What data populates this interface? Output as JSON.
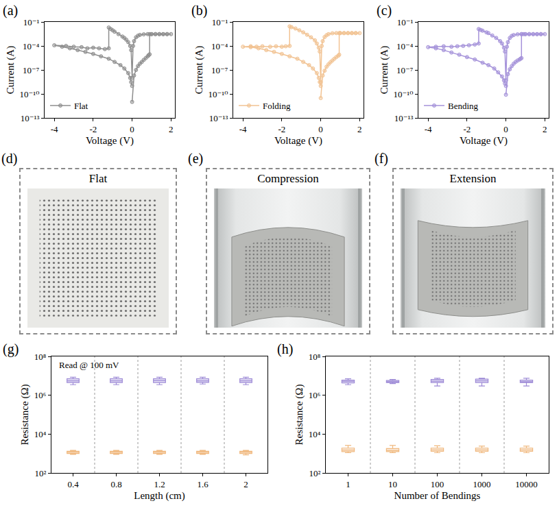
{
  "chart_data": [
    {
      "type": "line",
      "label": "(a)",
      "xlabel": "Voltage (V)",
      "ylabel": "Current (A)",
      "log": "y",
      "grid": false,
      "legend": "lower left",
      "xlim": [
        -4.5,
        2.2
      ],
      "xticks": [
        -4,
        -2,
        0,
        2
      ],
      "ylim": [
        1e-13,
        0.1
      ],
      "yticks": [
        {
          "value": 1e-13,
          "label": "10⁻¹³"
        },
        {
          "value": 1e-10,
          "label": "10⁻¹⁰"
        },
        {
          "value": 1e-07,
          "label": "10⁻⁷"
        },
        {
          "value": 0.0001,
          "label": "10⁻⁴"
        },
        {
          "value": 0.1,
          "label": "10⁻¹"
        }
      ],
      "series": [
        {
          "name": "Flat",
          "color": "#8e8e8e",
          "marker": "circle",
          "x": [
            0,
            0.1,
            0.2,
            0.3,
            0.4,
            0.5,
            0.6,
            0.7,
            0.8,
            0.85,
            0.9,
            0.9,
            1.0,
            1.2,
            1.4,
            1.6,
            1.8,
            2.0,
            1.8,
            1.6,
            1.4,
            1.2,
            1.0,
            0.8,
            0.6,
            0.4,
            0.3,
            0.2,
            0.1,
            0.05,
            0,
            -0.05,
            -0.1,
            -0.2,
            -0.3,
            -0.4,
            -0.5,
            -0.7,
            -0.9,
            -1.0,
            -1.1,
            -1.2,
            -1.2,
            -1.4,
            -1.7,
            -2.0,
            -2.3,
            -2.6,
            -3.0,
            -3.4,
            -4.0,
            -3.6,
            -3.2,
            -2.8,
            -2.4,
            -2.0,
            -1.6,
            -1.2,
            -0.9,
            -0.6,
            -0.4,
            -0.2,
            -0.1,
            -0.05,
            0
          ],
          "values": [
            1e-11,
            2e-08,
            1e-07,
            3e-07,
            6e-07,
            1e-06,
            1.8e-06,
            3e-06,
            5e-06,
            7e-06,
            9e-06,
            0.003,
            0.003,
            0.003,
            0.003,
            0.003,
            0.003,
            0.003,
            0.003,
            0.003,
            0.003,
            0.003,
            0.003,
            0.003,
            0.0028,
            0.0024,
            0.0019,
            0.0012,
            0.0004,
            0.0001,
            1e-08,
            3e-05,
            0.0001,
            0.0003,
            0.0006,
            0.001,
            0.0015,
            0.003,
            0.006,
            0.009,
            0.013,
            0.02,
            5e-05,
            4e-05,
            5e-05,
            6e-05,
            5e-05,
            7e-05,
            8e-05,
            0.0001,
            0.00012,
            8e-05,
            5e-05,
            3e-05,
            1.8e-05,
            1e-05,
            5e-06,
            2.5e-06,
            1e-06,
            4e-07,
            1.5e-07,
            4e-08,
            1e-08,
            3e-09,
            1e-09
          ]
        }
      ]
    },
    {
      "type": "line",
      "label": "(b)",
      "xlabel": "Voltage (V)",
      "ylabel": "Current (A)",
      "log": "y",
      "grid": false,
      "legend": "lower left",
      "xlim": [
        -4.5,
        2.2
      ],
      "xticks": [
        -4,
        -2,
        0,
        2
      ],
      "ylim": [
        1e-13,
        0.1
      ],
      "yticks": [
        {
          "value": 1e-13,
          "label": "10⁻¹³"
        },
        {
          "value": 1e-10,
          "label": "10⁻¹⁰"
        },
        {
          "value": 1e-07,
          "label": "10⁻⁷"
        },
        {
          "value": 0.0001,
          "label": "10⁻⁴"
        },
        {
          "value": 0.1,
          "label": "10⁻¹"
        }
      ],
      "series": [
        {
          "name": "Folding",
          "color": "#f2c393",
          "marker": "circle",
          "x": [
            0,
            0.1,
            0.2,
            0.3,
            0.4,
            0.5,
            0.6,
            0.7,
            0.8,
            0.9,
            0.95,
            0.95,
            1.0,
            1.2,
            1.4,
            1.6,
            1.8,
            2.0,
            1.8,
            1.6,
            1.4,
            1.2,
            1.0,
            0.8,
            0.6,
            0.4,
            0.3,
            0.2,
            0.1,
            0.05,
            0,
            -0.05,
            -0.1,
            -0.2,
            -0.3,
            -0.5,
            -0.7,
            -0.9,
            -1.1,
            -1.3,
            -1.5,
            -1.6,
            -1.6,
            -1.8,
            -2.0,
            -2.3,
            -2.6,
            -3.0,
            -3.3,
            -3.6,
            -4.0,
            -3.6,
            -3.2,
            -2.8,
            -2.4,
            -2.0,
            -1.6,
            -1.2,
            -0.9,
            -0.6,
            -0.4,
            -0.2,
            -0.1,
            -0.05,
            0
          ],
          "values": [
            3e-11,
            2e-08,
            8e-08,
            2.5e-07,
            5e-07,
            9e-07,
            1.5e-06,
            2.5e-06,
            4e-06,
            6e-06,
            8e-06,
            0.004,
            0.004,
            0.004,
            0.004,
            0.004,
            0.004,
            0.004,
            0.004,
            0.004,
            0.004,
            0.004,
            0.004,
            0.004,
            0.0038,
            0.003,
            0.0022,
            0.0013,
            0.0004,
            0.0001,
            3e-09,
            2e-05,
            6e-05,
            0.0002,
            0.0005,
            0.0012,
            0.0025,
            0.005,
            0.009,
            0.015,
            0.022,
            0.028,
            0.0001,
            9e-05,
            8e-05,
            9e-05,
            8e-05,
            9e-05,
            8e-05,
            9e-05,
            8e-05,
            7e-05,
            5e-05,
            3e-05,
            1.8e-05,
            1e-05,
            5e-06,
            2.5e-06,
            1e-06,
            4e-07,
            1.5e-07,
            4e-08,
            1e-08,
            3e-09,
            1e-09
          ]
        }
      ]
    },
    {
      "type": "line",
      "label": "(c)",
      "xlabel": "Voltage (V)",
      "ylabel": "Current (A)",
      "log": "y",
      "grid": false,
      "legend": "lower left",
      "xlim": [
        -4.5,
        2.2
      ],
      "xticks": [
        -4,
        -2,
        0,
        2
      ],
      "ylim": [
        1e-13,
        0.1
      ],
      "yticks": [
        {
          "value": 1e-13,
          "label": "10⁻¹³"
        },
        {
          "value": 1e-10,
          "label": "10⁻¹⁰"
        },
        {
          "value": 1e-07,
          "label": "10⁻⁷"
        },
        {
          "value": 0.0001,
          "label": "10⁻⁴"
        },
        {
          "value": 0.1,
          "label": "10⁻¹"
        }
      ],
      "series": [
        {
          "name": "Bending",
          "color": "#a592da",
          "marker": "circle",
          "x": [
            0,
            0.1,
            0.2,
            0.3,
            0.4,
            0.5,
            0.6,
            0.7,
            0.75,
            0.8,
            0.8,
            0.9,
            1.0,
            1.2,
            1.4,
            1.6,
            1.8,
            2.0,
            1.8,
            1.6,
            1.4,
            1.2,
            1.0,
            0.8,
            0.6,
            0.4,
            0.3,
            0.2,
            0.1,
            0.05,
            0,
            -0.05,
            -0.1,
            -0.2,
            -0.3,
            -0.5,
            -0.7,
            -0.9,
            -1.0,
            -1.2,
            -1.3,
            -1.4,
            -1.4,
            -1.6,
            -1.9,
            -2.2,
            -2.5,
            -2.8,
            -3.2,
            -3.6,
            -4.0,
            -3.6,
            -3.2,
            -2.8,
            -2.4,
            -2.0,
            -1.6,
            -1.2,
            -0.9,
            -0.6,
            -0.4,
            -0.2,
            -0.1,
            -0.05,
            0
          ],
          "values": [
            8e-11,
            3e-08,
            1.2e-07,
            3e-07,
            6e-07,
            1e-06,
            1.5e-06,
            2e-06,
            2.5e-06,
            3e-06,
            0.003,
            0.003,
            0.003,
            0.003,
            0.003,
            0.003,
            0.003,
            0.003,
            0.003,
            0.003,
            0.003,
            0.003,
            0.003,
            0.003,
            0.0028,
            0.0023,
            0.0018,
            0.001,
            0.0003,
            8e-05,
            5e-09,
            2e-05,
            6e-05,
            0.0002,
            0.0004,
            0.001,
            0.002,
            0.004,
            0.005,
            0.008,
            0.01,
            0.013,
            0.0002,
            0.00015,
            0.00012,
            0.0001,
            9e-05,
            8e-05,
            9e-05,
            8e-05,
            7e-05,
            5e-05,
            3e-05,
            1.5e-05,
            8e-06,
            4e-06,
            2e-06,
            8e-07,
            4e-07,
            1.5e-07,
            5e-08,
            1.5e-08,
            5e-09,
            2e-09,
            1e-09
          ]
        }
      ]
    },
    {
      "type": "box",
      "label": "(g)",
      "xlabel": "Length (cm)",
      "ylabel": "Resistance (Ω)",
      "log": "y",
      "grid": false,
      "annotations": [
        "Read @ 100 mV"
      ],
      "categories": [
        "0.4",
        "0.8",
        "1.2",
        "1.6",
        "2"
      ],
      "ylim": [
        100,
        100000000
      ],
      "yticks": [
        {
          "value": 100,
          "label": "10²"
        },
        {
          "value": 10000,
          "label": "10⁴"
        },
        {
          "value": 1000000,
          "label": "10⁶"
        },
        {
          "value": 100000000,
          "label": "10⁸"
        }
      ],
      "series": [
        {
          "color": "#9d8ad6",
          "lowerfence": [
            3500000,
            3500000,
            3500000,
            3800000,
            3500000
          ],
          "q1": [
            4500000,
            4500000,
            4500000,
            4600000,
            4500000
          ],
          "median": [
            5500000,
            5500000,
            5600000,
            5500000,
            5500000
          ],
          "q3": [
            7000000,
            7000000,
            7000000,
            7000000,
            7000000
          ],
          "upperfence": [
            8500000,
            8500000,
            8500000,
            8500000,
            8500000
          ]
        },
        {
          "color": "#f0b87e",
          "lowerfence": [
            900,
            900,
            900,
            900,
            850
          ],
          "q1": [
            1000,
            1000,
            1000,
            1000,
            1000
          ],
          "median": [
            1150,
            1150,
            1150,
            1150,
            1150
          ],
          "q3": [
            1300,
            1300,
            1300,
            1300,
            1300
          ],
          "upperfence": [
            1450,
            1450,
            1450,
            1450,
            1450
          ]
        }
      ]
    },
    {
      "type": "box",
      "label": "(h)",
      "xlabel": "Number of Bendings",
      "ylabel": "Resistance (Ω)",
      "log": "y",
      "grid": false,
      "categories": [
        "1",
        "10",
        "100",
        "1000",
        "10000"
      ],
      "ylim": [
        100,
        100000000
      ],
      "yticks": [
        {
          "value": 100,
          "label": "10²"
        },
        {
          "value": 10000,
          "label": "10⁴"
        },
        {
          "value": 1000000,
          "label": "10⁶"
        },
        {
          "value": 100000000,
          "label": "10⁸"
        }
      ],
      "series": [
        {
          "color": "#9d8ad6",
          "lowerfence": [
            3500000,
            4000000,
            3000000,
            3000000,
            3000000
          ],
          "q1": [
            4300000,
            4500000,
            4500000,
            4500000,
            4500000
          ],
          "median": [
            5200000,
            5000000,
            5300000,
            5500000,
            5000000
          ],
          "q3": [
            6000000,
            5800000,
            6500000,
            6800000,
            6000000
          ],
          "upperfence": [
            7000000,
            6500000,
            7500000,
            7500000,
            7500000
          ]
        },
        {
          "color": "#f0b87e",
          "lowerfence": [
            1100,
            1100,
            1100,
            1100,
            1100
          ],
          "q1": [
            1250,
            1250,
            1300,
            1300,
            1300
          ],
          "median": [
            1500,
            1450,
            1550,
            1550,
            1550
          ],
          "q3": [
            1900,
            1800,
            1900,
            1900,
            1900
          ],
          "upperfence": [
            2600,
            2600,
            2500,
            2400,
            2400
          ]
        }
      ]
    }
  ],
  "photos": [
    {
      "label": "(d)",
      "title": "Flat"
    },
    {
      "label": "(e)",
      "title": "Compression"
    },
    {
      "label": "(f)",
      "title": "Extension"
    }
  ]
}
